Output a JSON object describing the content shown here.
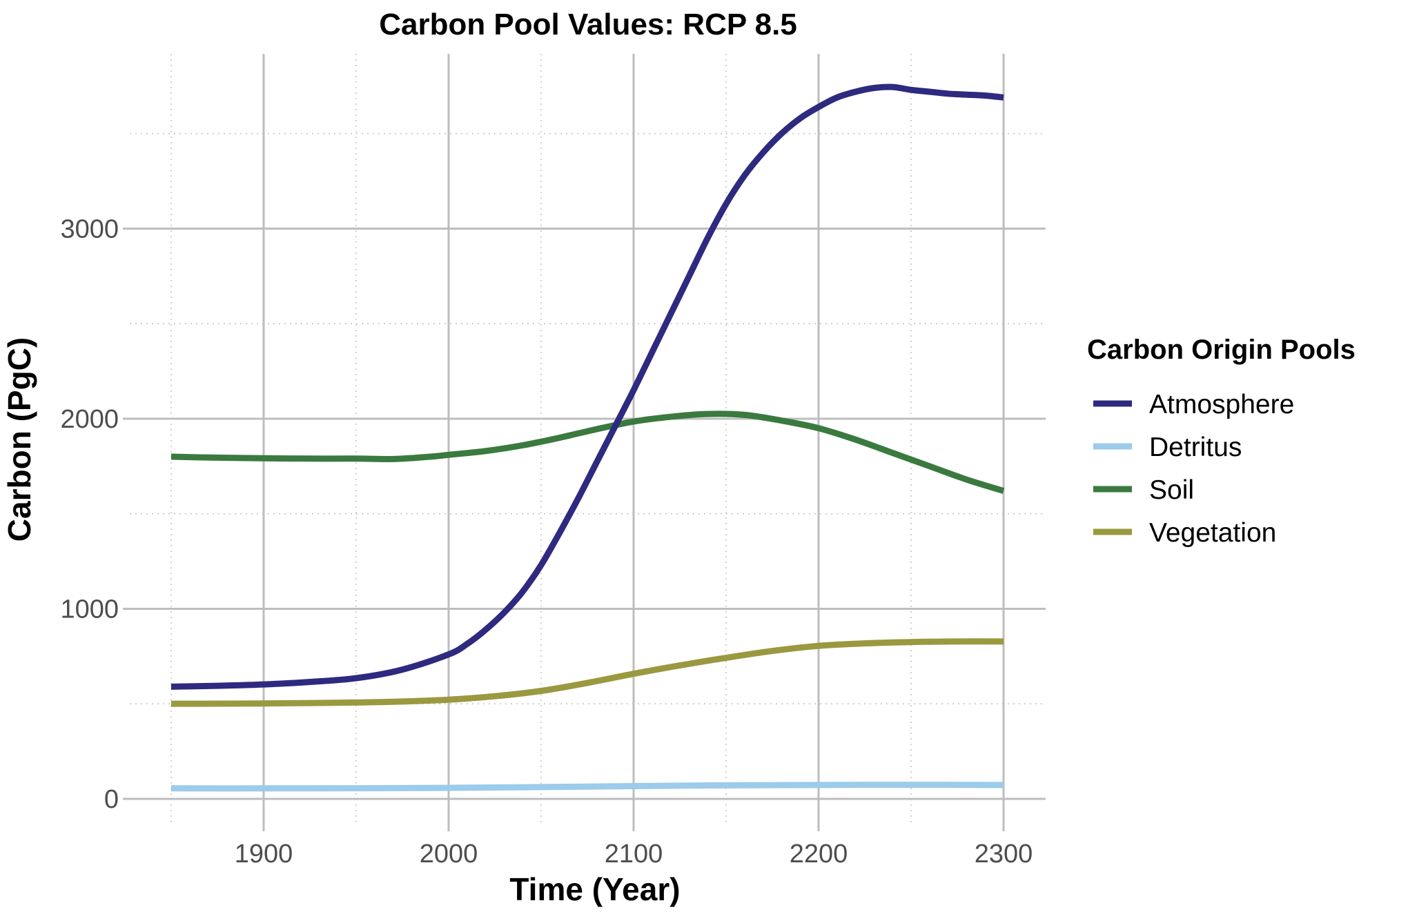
{
  "chart_data": {
    "type": "line",
    "title": "Carbon Pool Values: RCP 8.5",
    "xlabel": "Time (Year)",
    "ylabel": "Carbon (PgC)",
    "xlim": [
      1850,
      2300
    ],
    "ylim": [
      0,
      3750
    ],
    "x_ticks": [
      1900,
      2000,
      2100,
      2200,
      2300
    ],
    "y_ticks": [
      0,
      1000,
      2000,
      3000
    ],
    "x_minor_ticks": [
      1850,
      1950,
      2050,
      2150,
      2250
    ],
    "y_minor_ticks": [
      500,
      1500,
      2500,
      3500
    ],
    "grid": true,
    "legend": {
      "title": "Carbon Origin Pools",
      "placement": "right"
    },
    "series": [
      {
        "name": "Atmosphere",
        "color": "#2e2a80",
        "x": [
          1850,
          1875,
          1900,
          1925,
          1950,
          1975,
          2000,
          2010,
          2020,
          2030,
          2040,
          2050,
          2060,
          2070,
          2080,
          2090,
          2100,
          2110,
          2120,
          2130,
          2140,
          2150,
          2160,
          2170,
          2180,
          2190,
          2200,
          2210,
          2220,
          2230,
          2240,
          2250,
          2260,
          2270,
          2280,
          2290,
          2300
        ],
        "values": [
          590,
          595,
          602,
          615,
          635,
          680,
          760,
          815,
          890,
          980,
          1090,
          1230,
          1400,
          1580,
          1770,
          1960,
          2150,
          2350,
          2550,
          2750,
          2950,
          3130,
          3280,
          3400,
          3500,
          3580,
          3640,
          3690,
          3720,
          3740,
          3745,
          3730,
          3720,
          3710,
          3705,
          3700,
          3690
        ]
      },
      {
        "name": "Detritus",
        "color": "#9ccbeb",
        "x": [
          1850,
          1900,
          1950,
          2000,
          2050,
          2100,
          2150,
          2200,
          2250,
          2300
        ],
        "values": [
          55,
          55,
          56,
          58,
          62,
          67,
          71,
          73,
          74,
          73
        ]
      },
      {
        "name": "Soil",
        "color": "#3a7a3f",
        "x": [
          1850,
          1875,
          1900,
          1925,
          1950,
          1970,
          1990,
          2000,
          2020,
          2040,
          2060,
          2080,
          2100,
          2120,
          2140,
          2160,
          2180,
          2200,
          2220,
          2240,
          2260,
          2280,
          2300
        ],
        "values": [
          1800,
          1795,
          1792,
          1790,
          1790,
          1788,
          1800,
          1810,
          1830,
          1860,
          1900,
          1945,
          1985,
          2010,
          2025,
          2020,
          1990,
          1950,
          1890,
          1820,
          1750,
          1680,
          1620
        ]
      },
      {
        "name": "Vegetation",
        "color": "#9a9940",
        "x": [
          1850,
          1875,
          1900,
          1925,
          1950,
          1975,
          2000,
          2025,
          2050,
          2075,
          2100,
          2125,
          2150,
          2175,
          2200,
          2225,
          2250,
          2275,
          2300
        ],
        "values": [
          500,
          501,
          502,
          504,
          507,
          512,
          522,
          540,
          568,
          610,
          658,
          702,
          742,
          778,
          805,
          818,
          825,
          828,
          828
        ]
      }
    ]
  }
}
